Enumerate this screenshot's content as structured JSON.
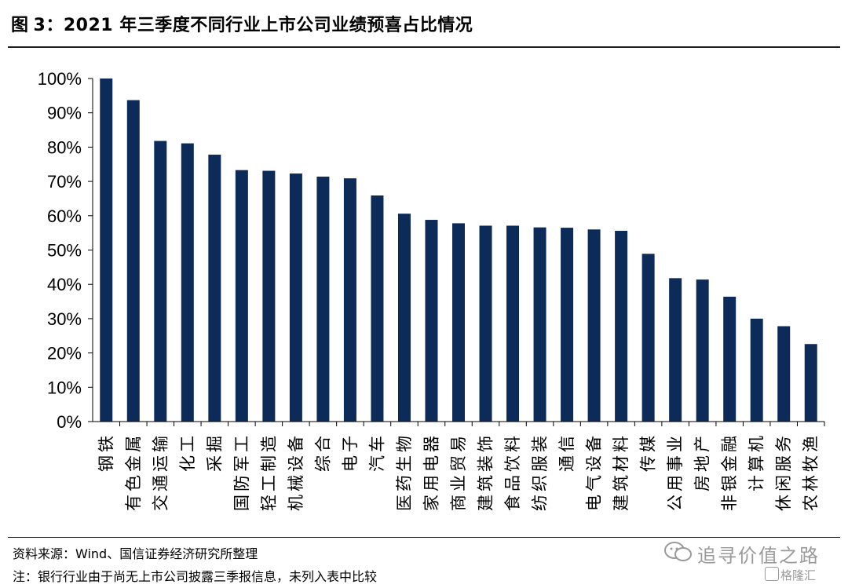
{
  "figure": {
    "label": "图",
    "number": "3：",
    "title": "2021 年三季度不同行业上市公司业绩预喜占比情况"
  },
  "chart_data": {
    "type": "bar",
    "title": "2021 年三季度不同行业上市公司业绩预喜占比情况",
    "xlabel": "",
    "ylabel": "",
    "ylim": [
      0,
      100
    ],
    "yticks": [
      "0%",
      "10%",
      "20%",
      "30%",
      "40%",
      "50%",
      "60%",
      "70%",
      "80%",
      "90%",
      "100%"
    ],
    "grid": false,
    "bar_color": "#0d2b59",
    "categories": [
      "钢铁",
      "有色金属",
      "交通运输",
      "化工",
      "采掘",
      "国防军工",
      "轻工制造",
      "机械设备",
      "综合",
      "电子",
      "汽车",
      "医药生物",
      "家用电器",
      "商业贸易",
      "建筑装饰",
      "食品饮料",
      "纺织服装",
      "通信",
      "电气设备",
      "建筑材料",
      "传媒",
      "公用事业",
      "房地产",
      "非银金融",
      "计算机",
      "休闲服务",
      "农林牧渔"
    ],
    "values": [
      100,
      93.7,
      81.8,
      81.1,
      77.8,
      73.3,
      73.1,
      72.3,
      71.4,
      70.9,
      65.9,
      60.6,
      58.8,
      57.8,
      57.1,
      57.1,
      56.6,
      56.5,
      56.0,
      55.6,
      48.9,
      41.8,
      41.4,
      36.4,
      30.0,
      27.8,
      22.6
    ]
  },
  "footer": {
    "source": "资料来源：Wind、国信证券经济研究所整理",
    "note": "注：银行行业由于尚无上市公司披露三季报信息，未列入表中比较"
  },
  "watermark": {
    "main": "追寻价值之路",
    "secondary": "格隆汇"
  }
}
